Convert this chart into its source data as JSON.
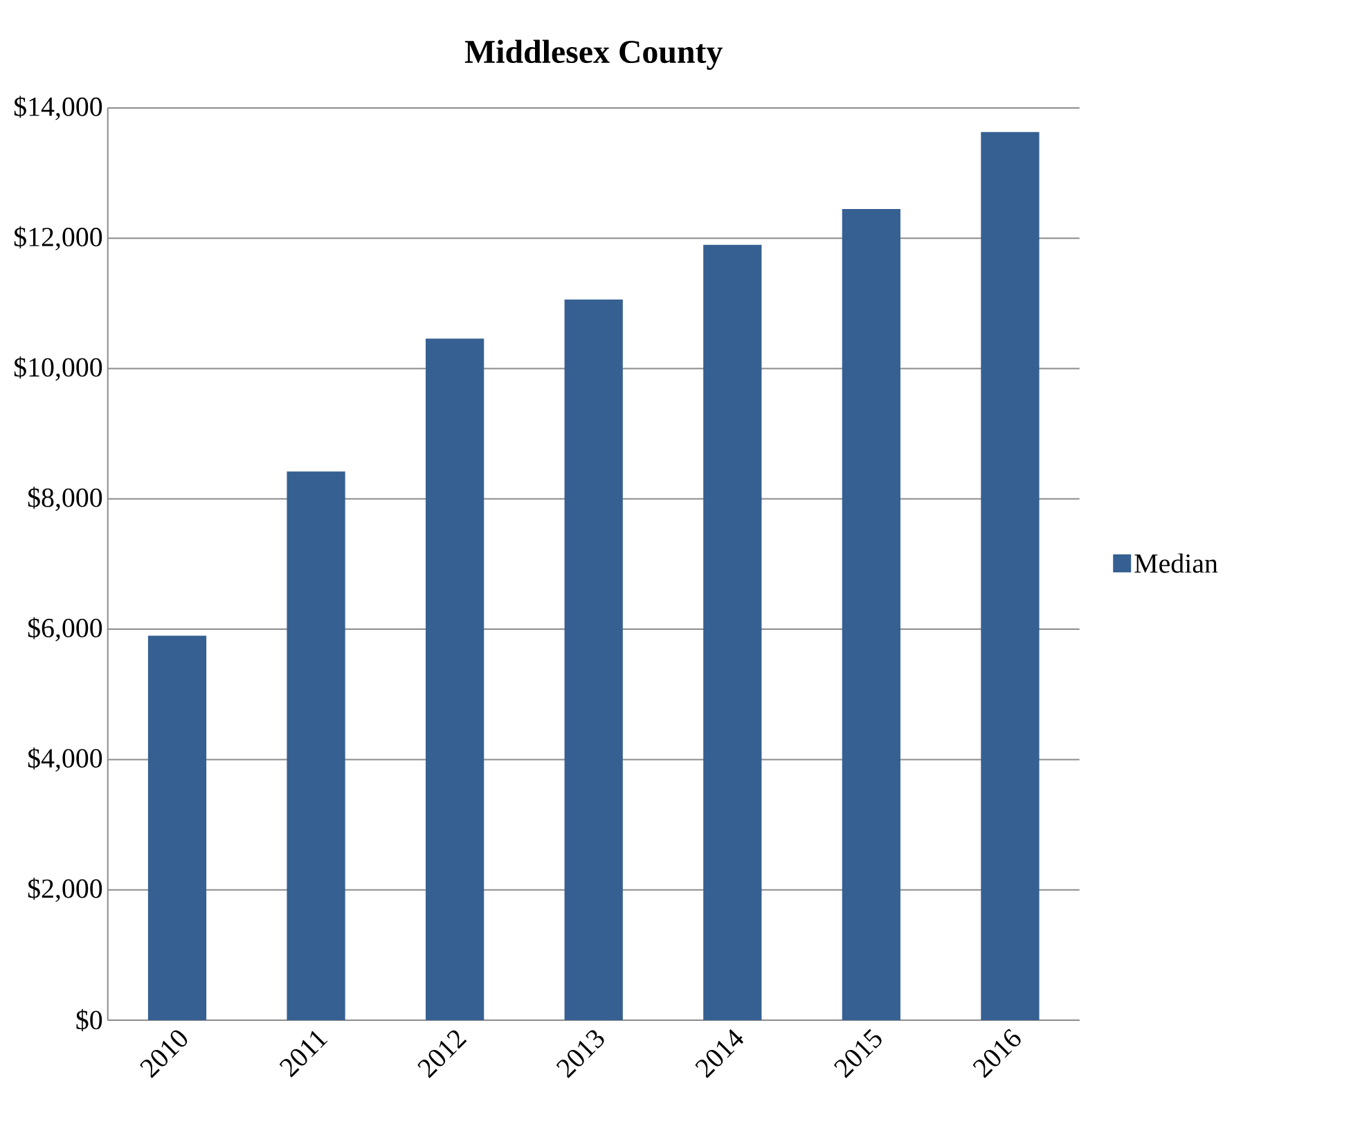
{
  "chart_data": {
    "type": "bar",
    "title": "Middlesex County",
    "categories": [
      "2010",
      "2011",
      "2012",
      "2013",
      "2014",
      "2015",
      "2016"
    ],
    "series": [
      {
        "name": "Median",
        "color": "#366092",
        "values": [
          5900,
          8420,
          10460,
          11060,
          11900,
          12450,
          13630
        ]
      }
    ],
    "ylim": [
      0,
      14000
    ],
    "yticks": [
      {
        "value": 0,
        "label": "$0"
      },
      {
        "value": 2000,
        "label": "$2,000"
      },
      {
        "value": 4000,
        "label": "$4,000"
      },
      {
        "value": 6000,
        "label": "$6,000"
      },
      {
        "value": 8000,
        "label": "$8,000"
      },
      {
        "value": 10000,
        "label": "$10,000"
      },
      {
        "value": 12000,
        "label": "$12,000"
      },
      {
        "value": 14000,
        "label": "$14,000"
      }
    ],
    "grid": "y",
    "legend": "right"
  }
}
